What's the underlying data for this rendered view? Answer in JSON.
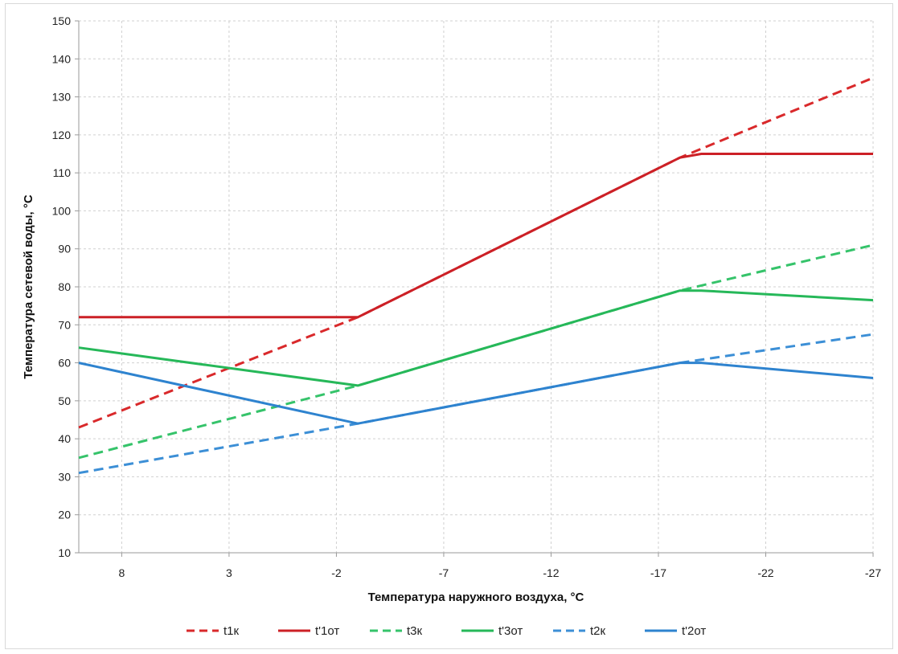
{
  "chart_data": {
    "type": "line",
    "title": "",
    "xlabel": "Температура наружного воздуха, °C",
    "ylabel": "Температура сетевой воды, °C",
    "x_ticks": [
      "8",
      "3",
      "-2",
      "-7",
      "-12",
      "-17",
      "-22",
      "-27"
    ],
    "xlim": [
      10,
      -27
    ],
    "ylim": [
      10,
      150
    ],
    "y_ticks": [
      10,
      20,
      30,
      40,
      50,
      60,
      70,
      80,
      90,
      100,
      110,
      120,
      130,
      140,
      150
    ],
    "grid": true,
    "legend_position": "bottom",
    "series": [
      {
        "name": "t1к",
        "color": "#d9292b",
        "dash": true,
        "points": [
          [
            10,
            43
          ],
          [
            -3,
            72
          ],
          [
            -18,
            114
          ],
          [
            -27,
            135
          ]
        ]
      },
      {
        "name": "t'1от",
        "color": "#cc2026",
        "dash": false,
        "points": [
          [
            10,
            72
          ],
          [
            -3,
            72
          ],
          [
            -18,
            114
          ],
          [
            -19,
            115
          ],
          [
            -27,
            115
          ]
        ]
      },
      {
        "name": "t3к",
        "color": "#35c36a",
        "dash": true,
        "points": [
          [
            10,
            35
          ],
          [
            -3,
            54
          ],
          [
            -18,
            79
          ],
          [
            -27,
            91
          ]
        ]
      },
      {
        "name": "t'3от",
        "color": "#26b859",
        "dash": false,
        "points": [
          [
            10,
            64
          ],
          [
            -3,
            54
          ],
          [
            -18,
            79
          ],
          [
            -19,
            79
          ],
          [
            -27,
            76.5
          ]
        ]
      },
      {
        "name": "t2к",
        "color": "#3c8fd6",
        "dash": true,
        "points": [
          [
            10,
            31
          ],
          [
            -3,
            44
          ],
          [
            -18,
            60
          ],
          [
            -27,
            67.5
          ]
        ]
      },
      {
        "name": "t'2от",
        "color": "#2e83cf",
        "dash": false,
        "points": [
          [
            10,
            60
          ],
          [
            -3,
            44
          ],
          [
            -18,
            60
          ],
          [
            -19,
            60
          ],
          [
            -27,
            56
          ]
        ]
      }
    ]
  }
}
